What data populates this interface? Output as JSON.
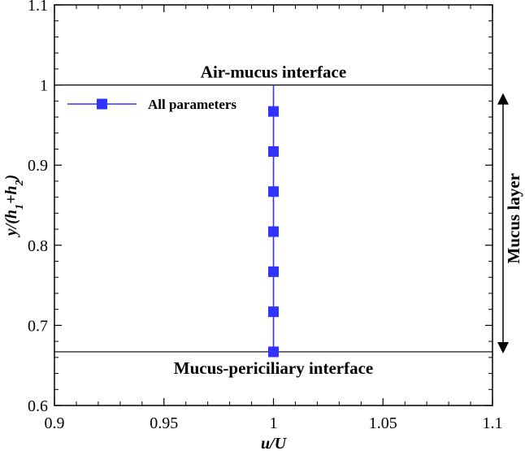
{
  "chart_data": {
    "type": "line",
    "title": "",
    "xlabel": "u/U",
    "ylabel": "y/(h1+h2)",
    "xlim": [
      0.9,
      1.1
    ],
    "ylim": [
      0.6,
      1.1
    ],
    "x_ticks": [
      "0.9",
      "0.95",
      "1",
      "1.05",
      "1.1"
    ],
    "y_ticks": [
      "0.6",
      "0.7",
      "0.8",
      "0.9",
      "1",
      "1.1"
    ],
    "grid": false,
    "legend_position": "top-left",
    "series": [
      {
        "name": "All parameters",
        "color": "#3333ff",
        "marker": "square",
        "line": {
          "x": [
            1,
            1
          ],
          "y": [
            0.667,
            1.0
          ]
        },
        "points": [
          {
            "x": 1,
            "y": 0.667
          },
          {
            "x": 1,
            "y": 0.717
          },
          {
            "x": 1,
            "y": 0.767
          },
          {
            "x": 1,
            "y": 0.817
          },
          {
            "x": 1,
            "y": 0.867
          },
          {
            "x": 1,
            "y": 0.917
          },
          {
            "x": 1,
            "y": 0.967
          }
        ]
      }
    ],
    "reference_lines": [
      {
        "y": 1.0,
        "label": "Air-mucus interface"
      },
      {
        "y": 0.667,
        "label": "Mucus-periciliary interface"
      }
    ],
    "annotations": [
      {
        "text": "Mucus layer",
        "type": "double-arrow",
        "y_from": 0.667,
        "y_to": 1.0
      }
    ]
  }
}
